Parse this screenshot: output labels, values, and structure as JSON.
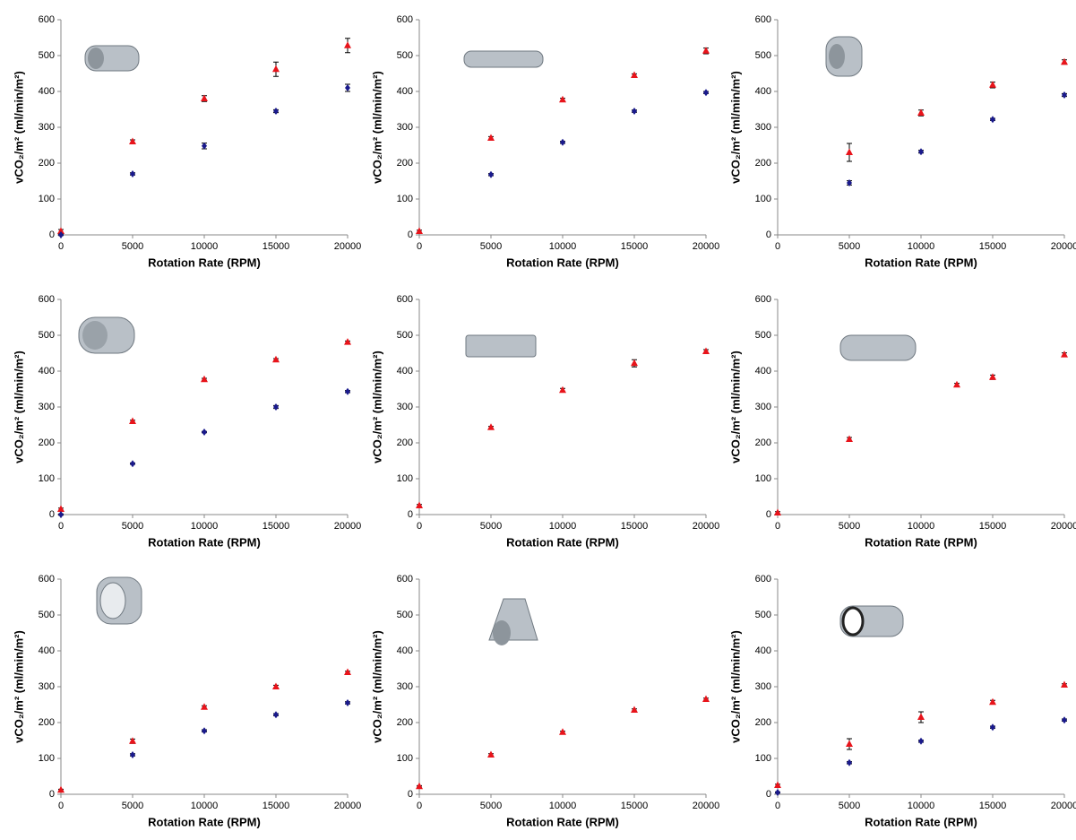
{
  "chart_data": [
    {
      "type": "scatter",
      "xlabel": "Rotation Rate (RPM)",
      "ylabel": "vCO₂/m² (ml/min/m²)",
      "xlim": [
        0,
        20000
      ],
      "ylim": [
        0,
        600
      ],
      "xticks": [
        0,
        5000,
        10000,
        15000,
        20000
      ],
      "yticks": [
        0,
        100,
        200,
        300,
        400,
        500,
        600
      ],
      "series": [
        {
          "color": "#e8141b",
          "marker": "triangle",
          "x": [
            0,
            5000,
            10000,
            15000,
            20000
          ],
          "values": [
            10,
            260,
            380,
            462,
            528
          ],
          "errors": [
            5,
            5,
            8,
            20,
            20
          ]
        },
        {
          "color": "#1a1a8c",
          "marker": "diamond",
          "x": [
            0,
            5000,
            10000,
            15000,
            20000
          ],
          "values": [
            0,
            170,
            248,
            345,
            410
          ],
          "errors": [
            2,
            3,
            8,
            4,
            10
          ]
        }
      ]
    },
    {
      "type": "scatter",
      "xlabel": "Rotation Rate (RPM)",
      "ylabel": "vCO₂/m² (ml/min/m²)",
      "xlim": [
        0,
        20000
      ],
      "ylim": [
        0,
        600
      ],
      "xticks": [
        0,
        5000,
        10000,
        15000,
        20000
      ],
      "yticks": [
        0,
        100,
        200,
        300,
        400,
        500,
        600
      ],
      "series": [
        {
          "color": "#e8141b",
          "marker": "triangle",
          "x": [
            0,
            5000,
            10000,
            15000,
            20000
          ],
          "values": [
            10,
            270,
            377,
            445,
            513
          ],
          "errors": [
            3,
            4,
            4,
            4,
            8
          ]
        },
        {
          "color": "#1a1a8c",
          "marker": "diamond",
          "x": [
            5000,
            10000,
            15000,
            20000
          ],
          "values": [
            168,
            258,
            345,
            397
          ],
          "errors": [
            3,
            3,
            3,
            3
          ]
        }
      ]
    },
    {
      "type": "scatter",
      "xlabel": "Rotation Rate (RPM)",
      "ylabel": "vCO₂/m² (ml/min/m²)",
      "xlim": [
        0,
        20000
      ],
      "ylim": [
        0,
        600
      ],
      "xticks": [
        0,
        5000,
        10000,
        15000,
        20000
      ],
      "yticks": [
        0,
        100,
        200,
        300,
        400,
        500,
        600
      ],
      "series": [
        {
          "color": "#e8141b",
          "marker": "triangle",
          "x": [
            5000,
            10000,
            15000,
            20000
          ],
          "values": [
            230,
            340,
            418,
            482
          ],
          "errors": [
            25,
            8,
            8,
            6
          ]
        },
        {
          "color": "#1a1a8c",
          "marker": "diamond",
          "x": [
            5000,
            10000,
            15000,
            20000
          ],
          "values": [
            145,
            232,
            322,
            390
          ],
          "errors": [
            6,
            4,
            3,
            4
          ]
        }
      ]
    },
    {
      "type": "scatter",
      "xlabel": "Rotation Rate (RPM)",
      "ylabel": "vCO₂/m² (ml/min/m²)",
      "xlim": [
        0,
        20000
      ],
      "ylim": [
        0,
        600
      ],
      "xticks": [
        0,
        5000,
        10000,
        15000,
        20000
      ],
      "yticks": [
        0,
        100,
        200,
        300,
        400,
        500,
        600
      ],
      "series": [
        {
          "color": "#e8141b",
          "marker": "triangle",
          "x": [
            0,
            5000,
            10000,
            15000,
            20000
          ],
          "values": [
            15,
            260,
            377,
            432,
            481
          ],
          "errors": [
            3,
            3,
            3,
            3,
            3
          ]
        },
        {
          "color": "#1a1a8c",
          "marker": "diamond",
          "x": [
            0,
            5000,
            10000,
            15000,
            20000
          ],
          "values": [
            0,
            142,
            230,
            300,
            343
          ],
          "errors": [
            2,
            2,
            2,
            4,
            3
          ]
        }
      ]
    },
    {
      "type": "scatter",
      "xlabel": "Rotation Rate (RPM)",
      "ylabel": "vCO₂/m² (ml/min/m²)",
      "xlim": [
        0,
        20000
      ],
      "ylim": [
        0,
        600
      ],
      "xticks": [
        0,
        5000,
        10000,
        15000,
        20000
      ],
      "yticks": [
        0,
        100,
        200,
        300,
        400,
        500,
        600
      ],
      "series": [
        {
          "color": "#e8141b",
          "marker": "triangle",
          "x": [
            0,
            5000,
            10000,
            15000,
            20000
          ],
          "values": [
            25,
            243,
            347,
            422,
            455
          ],
          "errors": [
            3,
            3,
            5,
            10,
            5
          ]
        }
      ]
    },
    {
      "type": "scatter",
      "xlabel": "Rotation Rate (RPM)",
      "ylabel": "vCO₂/m² (ml/min/m²)",
      "xlim": [
        0,
        20000
      ],
      "ylim": [
        0,
        600
      ],
      "xticks": [
        0,
        5000,
        10000,
        15000,
        20000
      ],
      "yticks": [
        0,
        100,
        200,
        300,
        400,
        500,
        600
      ],
      "series": [
        {
          "color": "#e8141b",
          "marker": "triangle",
          "x": [
            0,
            5000,
            12500,
            15000,
            20000
          ],
          "values": [
            5,
            210,
            362,
            383,
            446
          ],
          "errors": [
            3,
            5,
            4,
            6,
            5
          ]
        }
      ]
    },
    {
      "type": "scatter",
      "xlabel": "Rotation Rate (RPM)",
      "ylabel": "vCO₂/m² (ml/min/m²)",
      "xlim": [
        0,
        20000
      ],
      "ylim": [
        0,
        600
      ],
      "xticks": [
        0,
        5000,
        10000,
        15000,
        20000
      ],
      "yticks": [
        0,
        100,
        200,
        300,
        400,
        500,
        600
      ],
      "series": [
        {
          "color": "#e8141b",
          "marker": "triangle",
          "x": [
            0,
            5000,
            10000,
            15000,
            20000
          ],
          "values": [
            12,
            148,
            243,
            300,
            340
          ],
          "errors": [
            2,
            6,
            4,
            4,
            3
          ]
        },
        {
          "color": "#1a1a8c",
          "marker": "diamond",
          "x": [
            5000,
            10000,
            15000,
            20000
          ],
          "values": [
            110,
            177,
            222,
            255
          ],
          "errors": [
            3,
            3,
            3,
            3
          ]
        }
      ]
    },
    {
      "type": "scatter",
      "xlabel": "Rotation Rate (RPM)",
      "ylabel": "vCO₂/m² (ml/min/m²)",
      "xlim": [
        0,
        20000
      ],
      "ylim": [
        0,
        600
      ],
      "xticks": [
        0,
        5000,
        10000,
        15000,
        20000
      ],
      "yticks": [
        0,
        100,
        200,
        300,
        400,
        500,
        600
      ],
      "series": [
        {
          "color": "#e8141b",
          "marker": "triangle",
          "x": [
            0,
            5000,
            10000,
            15000,
            20000
          ],
          "values": [
            22,
            110,
            173,
            235,
            265
          ],
          "errors": [
            2,
            3,
            3,
            3,
            3
          ]
        }
      ]
    },
    {
      "type": "scatter",
      "xlabel": "Rotation Rate (RPM)",
      "ylabel": "vCO₂/m² (ml/min/m²)",
      "xlim": [
        0,
        20000
      ],
      "ylim": [
        0,
        600
      ],
      "xticks": [
        0,
        5000,
        10000,
        15000,
        20000
      ],
      "yticks": [
        0,
        100,
        200,
        300,
        400,
        500,
        600
      ],
      "series": [
        {
          "color": "#e8141b",
          "marker": "triangle",
          "x": [
            0,
            5000,
            10000,
            15000,
            20000
          ],
          "values": [
            25,
            140,
            215,
            257,
            305
          ],
          "errors": [
            3,
            15,
            15,
            5,
            3
          ]
        },
        {
          "color": "#1a1a8c",
          "marker": "diamond",
          "x": [
            0,
            5000,
            10000,
            15000,
            20000
          ],
          "values": [
            5,
            88,
            148,
            187,
            207
          ],
          "errors": [
            2,
            3,
            3,
            3,
            3
          ]
        }
      ]
    }
  ]
}
